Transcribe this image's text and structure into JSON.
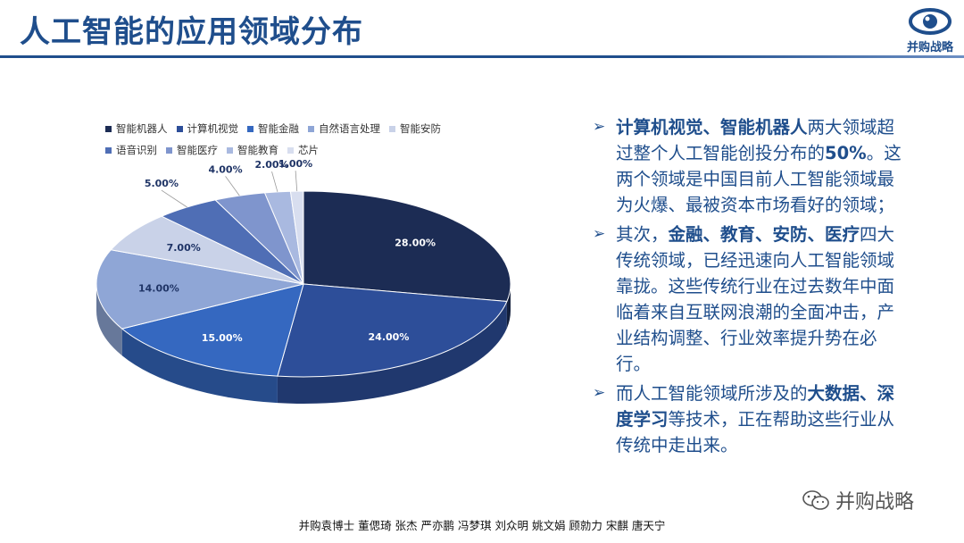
{
  "header": {
    "title": "人工智能的应用领域分布",
    "logo_text": "并购战略"
  },
  "chart_data": {
    "type": "pie",
    "title": "",
    "legend_position": "top",
    "slices": [
      {
        "label": "智能机器人",
        "value": 28.0,
        "display": "28.00%",
        "color": "#1c2c54"
      },
      {
        "label": "计算机视觉",
        "value": 24.0,
        "display": "24.00%",
        "color": "#2d4e99"
      },
      {
        "label": "智能金融",
        "value": 15.0,
        "display": "15.00%",
        "color": "#3568c0"
      },
      {
        "label": "自然语言处理",
        "value": 14.0,
        "display": "14.00%",
        "color": "#8fa6d6"
      },
      {
        "label": "智能安防",
        "value": 7.0,
        "display": "7.00%",
        "color": "#c9d2e8"
      },
      {
        "label": "语音识别",
        "value": 5.0,
        "display": "5.00%",
        "color": "#4f6eb5"
      },
      {
        "label": "智能医疗",
        "value": 4.0,
        "display": "4.00%",
        "color": "#7f95cd"
      },
      {
        "label": "智能教育",
        "value": 2.0,
        "display": "2.00%",
        "color": "#a9b9e0"
      },
      {
        "label": "芯片",
        "value": 1.0,
        "display": "1.00%",
        "color": "#d8deef"
      }
    ]
  },
  "legend_rows": [
    [
      0,
      1,
      2,
      3,
      4
    ],
    [
      5,
      6,
      7,
      8
    ]
  ],
  "text_panel": {
    "bullet_mark": "➢",
    "bullets": [
      {
        "parts": [
          {
            "text": "计算机视觉、智能机器人",
            "bold": true
          },
          {
            "text": "两大领域超过整个人工智能创投分布的",
            "bold": false
          },
          {
            "text": "50%",
            "bold": true
          },
          {
            "text": "。这两个领域是中国目前人工智能领域最为火爆、最被资本市场看好的领域；",
            "bold": false
          }
        ]
      },
      {
        "parts": [
          {
            "text": "其次，",
            "bold": false
          },
          {
            "text": "金融、教育、安防、医疗",
            "bold": true
          },
          {
            "text": "四大传统领域，已经迅速向人工智能领域靠拢。这些传统行业在过去数年中面临着来自互联网浪潮的全面冲击，产业结构调整、行业效率提升势在必行。",
            "bold": false
          }
        ]
      },
      {
        "parts": [
          {
            "text": "而人工智能领域所涉及的",
            "bold": false
          },
          {
            "text": "大数据、深度学习",
            "bold": true
          },
          {
            "text": "等技术，正在帮助这些行业从传统中走出来。",
            "bold": false
          }
        ]
      }
    ]
  },
  "watermark": {
    "text": "并购战略"
  },
  "footer": {
    "authors": "并购袁博士 董偲琦 张杰 严亦鹏 冯梦琪 刘众明 姚文娟 顾勍力 宋麒 唐天宁"
  }
}
